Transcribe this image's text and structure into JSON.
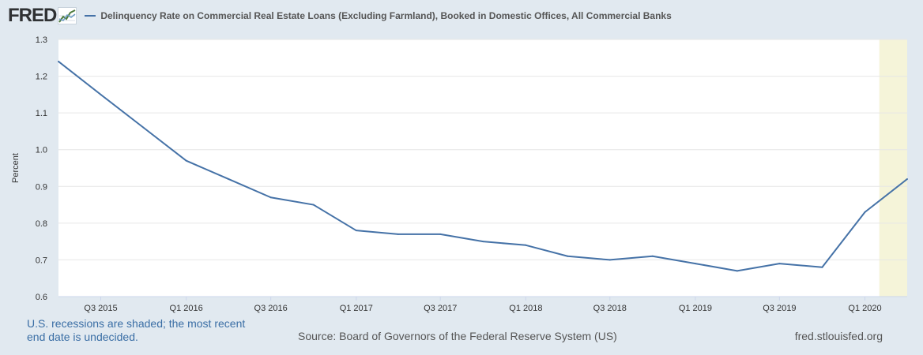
{
  "header": {
    "logo_text": "FRED",
    "logo_icon": "chart-line-icon"
  },
  "chart_data": {
    "type": "line",
    "series": [
      {
        "name": "Delinquency Rate on Commercial Real Estate Loans (Excluding Farmland), Booked in Domestic Offices, All Commercial Banks",
        "color": "#4572a7",
        "x": [
          "2015-04-01",
          "2015-07-01",
          "2015-10-01",
          "2016-01-01",
          "2016-04-01",
          "2016-07-01",
          "2016-10-01",
          "2017-01-01",
          "2017-04-01",
          "2017-07-01",
          "2017-10-01",
          "2018-01-01",
          "2018-04-01",
          "2018-07-01",
          "2018-10-01",
          "2019-01-01",
          "2019-04-01",
          "2019-07-01",
          "2019-10-01",
          "2020-01-01",
          "2020-04-01"
        ],
        "values": [
          1.24,
          1.15,
          1.06,
          0.97,
          0.92,
          0.87,
          0.85,
          0.78,
          0.77,
          0.77,
          0.75,
          0.74,
          0.71,
          0.7,
          0.71,
          0.69,
          0.67,
          0.69,
          0.68,
          0.83,
          0.92
        ]
      }
    ],
    "x_ticks": [
      {
        "label": "Q3 2015",
        "date": "2015-07-01"
      },
      {
        "label": "Q1 2016",
        "date": "2016-01-01"
      },
      {
        "label": "Q3 2016",
        "date": "2016-07-01"
      },
      {
        "label": "Q1 2017",
        "date": "2017-01-01"
      },
      {
        "label": "Q3 2017",
        "date": "2017-07-01"
      },
      {
        "label": "Q1 2018",
        "date": "2018-01-01"
      },
      {
        "label": "Q3 2018",
        "date": "2018-07-01"
      },
      {
        "label": "Q1 2019",
        "date": "2019-01-01"
      },
      {
        "label": "Q3 2019",
        "date": "2019-07-01"
      },
      {
        "label": "Q1 2020",
        "date": "2020-01-01"
      }
    ],
    "y_ticks": [
      "0.6",
      "0.7",
      "0.8",
      "0.9",
      "1.0",
      "1.1",
      "1.2",
      "1.3"
    ],
    "xlim": [
      "2015-04-01",
      "2020-04-01"
    ],
    "ylim": [
      0.6,
      1.3
    ],
    "xlabel": "",
    "ylabel": "Percent",
    "recession": {
      "start": "2020-02-01",
      "end": "2020-04-01",
      "color": "#f5f4d9"
    },
    "grid": true,
    "legend": "top-left"
  },
  "footer": {
    "note": "U.S. recessions are shaded; the most recent end date is undecided.",
    "source": "Source: Board of Governors of the Federal Reserve System (US)",
    "site": "fred.stlouisfed.org"
  }
}
